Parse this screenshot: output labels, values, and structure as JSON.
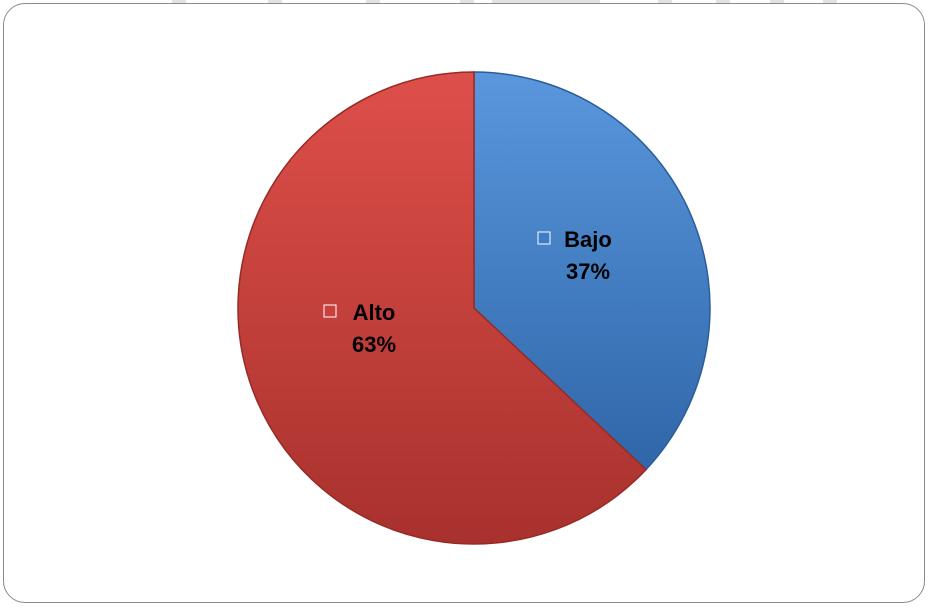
{
  "chart_data": {
    "type": "pie",
    "title": "",
    "categories": [
      "Bajo",
      "Alto"
    ],
    "values": [
      37,
      63
    ],
    "labels": [
      "37%",
      "63%"
    ],
    "colors": [
      "#3f7cc4",
      "#c8413c"
    ],
    "legend": "inline-labels",
    "start_angle": "12 o'clock, clockwise"
  }
}
